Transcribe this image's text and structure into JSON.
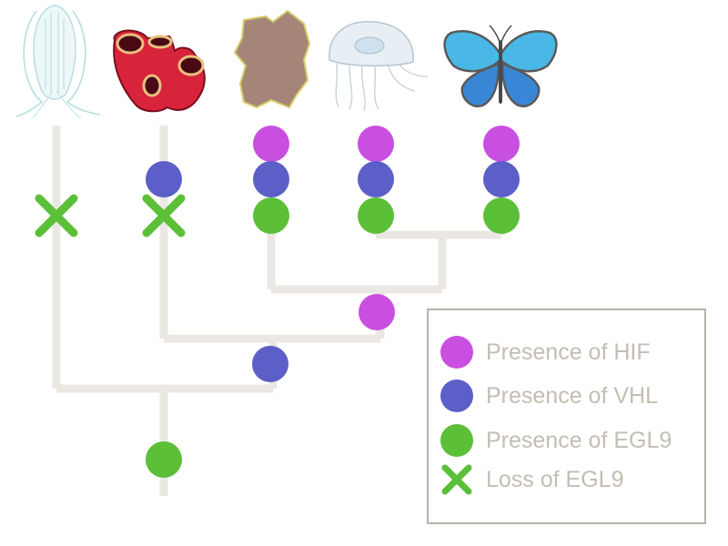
{
  "colors": {
    "hif": "#c94fe0",
    "vhl": "#5b5fc7",
    "egl9": "#5cbf38",
    "branch": "#ebe8e3",
    "legend_border": "#b9b2a6",
    "legend_text": "#c3bdb3"
  },
  "taxa": [
    {
      "name": "comb-jelly",
      "icon": "comb-jelly-icon",
      "markers": [],
      "lost": [
        "egl9"
      ]
    },
    {
      "name": "sponge",
      "icon": "sponge-icon",
      "markers": [
        "vhl"
      ],
      "lost": [
        "egl9"
      ]
    },
    {
      "name": "placozoan",
      "icon": "placozoan-icon",
      "markers": [
        "hif",
        "vhl",
        "egl9"
      ],
      "lost": []
    },
    {
      "name": "jellyfish",
      "icon": "jellyfish-icon",
      "markers": [
        "hif",
        "vhl",
        "egl9"
      ],
      "lost": []
    },
    {
      "name": "butterfly",
      "icon": "butterfly-icon",
      "markers": [
        "hif",
        "vhl",
        "egl9"
      ],
      "lost": []
    }
  ],
  "node_events": [
    {
      "node": "root",
      "marker": "egl9"
    },
    {
      "node": "sponge-plus-rest",
      "marker": "vhl"
    },
    {
      "node": "placozoa-plus-cnidaria-bilateria",
      "marker": "hif"
    }
  ],
  "legend": {
    "items": [
      {
        "symbol": "circle",
        "marker": "hif",
        "label": "Presence of HIF"
      },
      {
        "symbol": "circle",
        "marker": "vhl",
        "label": "Presence of VHL"
      },
      {
        "symbol": "circle",
        "marker": "egl9",
        "label": "Presence of EGL9"
      },
      {
        "symbol": "cross",
        "marker": "egl9",
        "label": "Loss of EGL9"
      }
    ]
  }
}
